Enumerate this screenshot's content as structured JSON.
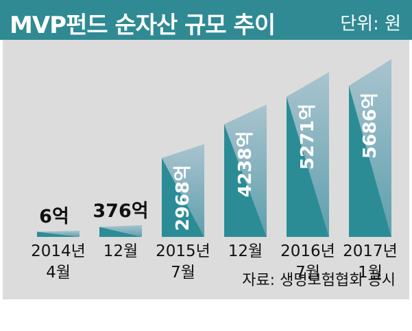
{
  "title": "MVP펀드 순자산 규모 추이",
  "unit": "단위: 원",
  "source": "자료: 생명보험협회 공시",
  "colors": {
    "title_bg": "#2f8a93",
    "bar_dark": "#2b8c96",
    "bar_light": "#a9c4cf",
    "panel_bg": "#dcdcdc"
  },
  "chart_data": {
    "type": "bar",
    "categories": [
      [
        "2014년",
        "4월"
      ],
      [
        "12월"
      ],
      [
        "2015년",
        "7월"
      ],
      [
        "12월"
      ],
      [
        "2016년",
        "7월"
      ],
      [
        "2017년",
        "1월"
      ]
    ],
    "values": [
      6,
      376,
      2968,
      4238,
      5271,
      5686
    ],
    "value_labels": [
      "6억",
      "376억",
      "2968억",
      "4238억",
      "5271억",
      "5686억"
    ],
    "unit": "억 원",
    "grid": false,
    "legend": "none"
  }
}
